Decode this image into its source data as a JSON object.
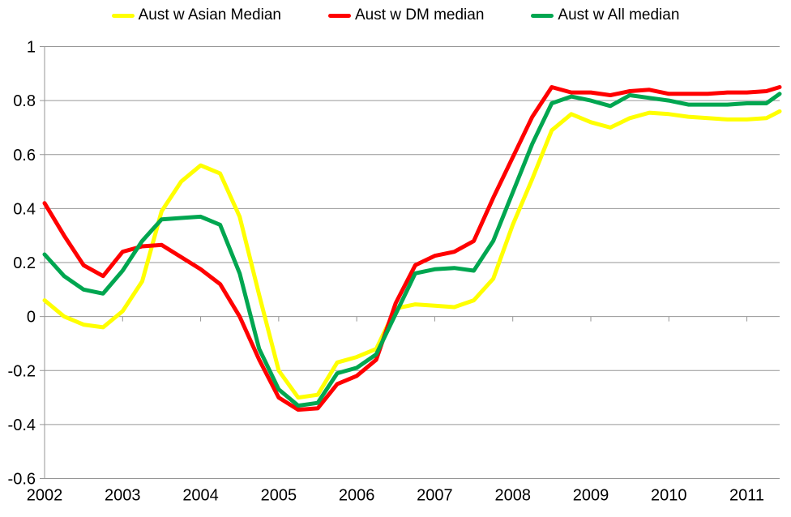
{
  "chart_data": {
    "type": "line",
    "title": "",
    "xlabel": "",
    "ylabel": "",
    "grid": true,
    "legend_position": "top",
    "background": "#FFFFFF",
    "gridline_color": "#969696",
    "axis_text_color": "#000000",
    "line_width": 5,
    "xlim": [
      2002.0,
      2011.42
    ],
    "ylim": [
      -0.6,
      1.0
    ],
    "x_ticks": [
      2002,
      2003,
      2004,
      2005,
      2006,
      2007,
      2008,
      2009,
      2010,
      2011
    ],
    "x_tick_labels": [
      "2002",
      "2003",
      "2004",
      "2005",
      "2006",
      "2007",
      "2008",
      "2009",
      "2010",
      "2011"
    ],
    "y_ticks": [
      1,
      0.8,
      0.6,
      0.4,
      0.2,
      0,
      -0.2,
      -0.4,
      -0.6
    ],
    "y_tick_labels": [
      "1",
      "0.8",
      "0.6",
      "0.4",
      "0.2",
      "0",
      "-0.2",
      "-0.4",
      "-0.6"
    ],
    "x": [
      2002.0,
      2002.25,
      2002.5,
      2002.75,
      2003.0,
      2003.25,
      2003.5,
      2003.75,
      2004.0,
      2004.25,
      2004.5,
      2004.75,
      2005.0,
      2005.25,
      2005.5,
      2005.75,
      2006.0,
      2006.25,
      2006.5,
      2006.75,
      2007.0,
      2007.25,
      2007.5,
      2007.75,
      2008.0,
      2008.25,
      2008.5,
      2008.75,
      2009.0,
      2009.25,
      2009.5,
      2009.75,
      2010.0,
      2010.25,
      2010.5,
      2010.75,
      2011.0,
      2011.25,
      2011.42
    ],
    "series": [
      {
        "name": "Aust w Asian Median",
        "color": "#FFFF00",
        "values": [
          0.06,
          0.0,
          -0.03,
          -0.04,
          0.02,
          0.13,
          0.39,
          0.5,
          0.56,
          0.53,
          0.37,
          0.08,
          -0.2,
          -0.3,
          -0.29,
          -0.17,
          -0.15,
          -0.12,
          0.03,
          0.045,
          0.04,
          0.035,
          0.06,
          0.14,
          0.34,
          0.51,
          0.69,
          0.75,
          0.72,
          0.7,
          0.735,
          0.755,
          0.75,
          0.74,
          0.735,
          0.73,
          0.73,
          0.735,
          0.76
        ]
      },
      {
        "name": "Aust w DM median",
        "color": "#FF0000",
        "values": [
          0.42,
          0.3,
          0.19,
          0.15,
          0.24,
          0.26,
          0.265,
          0.22,
          0.175,
          0.12,
          0.0,
          -0.16,
          -0.3,
          -0.345,
          -0.34,
          -0.25,
          -0.22,
          -0.16,
          0.05,
          0.19,
          0.225,
          0.24,
          0.28,
          0.44,
          0.59,
          0.74,
          0.85,
          0.83,
          0.83,
          0.82,
          0.835,
          0.84,
          0.825,
          0.825,
          0.825,
          0.83,
          0.83,
          0.835,
          0.85
        ]
      },
      {
        "name": "Aust w All median",
        "color": "#00A650",
        "values": [
          0.23,
          0.15,
          0.1,
          0.085,
          0.17,
          0.28,
          0.36,
          0.365,
          0.37,
          0.34,
          0.16,
          -0.12,
          -0.27,
          -0.33,
          -0.32,
          -0.21,
          -0.19,
          -0.14,
          0.01,
          0.16,
          0.175,
          0.18,
          0.17,
          0.28,
          0.46,
          0.64,
          0.79,
          0.815,
          0.8,
          0.78,
          0.82,
          0.81,
          0.8,
          0.785,
          0.785,
          0.785,
          0.79,
          0.79,
          0.825
        ]
      }
    ]
  }
}
